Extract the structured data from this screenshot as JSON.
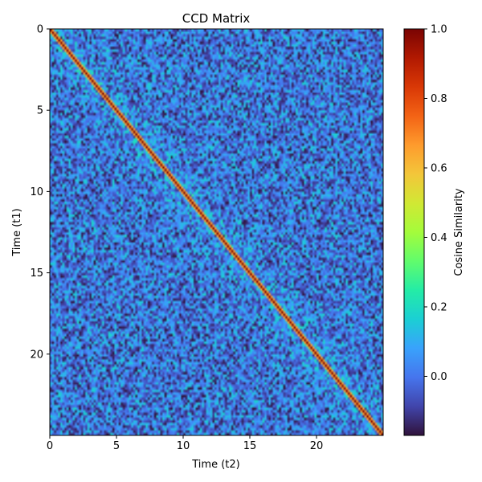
{
  "chart_data": {
    "type": "heatmap",
    "title": "CCD Matrix",
    "xlabel": "Time (t2)",
    "ylabel": "Time (t1)",
    "xlim": [
      0,
      25
    ],
    "ylim": [
      25,
      0
    ],
    "xticks": [
      0,
      5,
      10,
      15,
      20
    ],
    "yticks": [
      0,
      5,
      10,
      15,
      20
    ],
    "colorbar": {
      "label": "Cosine Similarity",
      "range": [
        -0.17,
        1.0
      ],
      "ticks": [
        0.0,
        0.2,
        0.4,
        0.6,
        0.8,
        1.0
      ],
      "tick_labels": [
        "0.0",
        "0.2",
        "0.4",
        "0.6",
        "0.8",
        "1.0"
      ],
      "colormap": "turbo"
    },
    "matrix_description": {
      "diagonal_value": 1.0,
      "near_diagonal_band_value": 0.15,
      "background_mean": 0.0,
      "background_range": [
        -0.12,
        0.2
      ]
    }
  },
  "colors": {
    "colormap_stops": [
      "#30123b",
      "#4145ab",
      "#4675ed",
      "#39a2fc",
      "#1bcfd4",
      "#24eca6",
      "#61fc6c",
      "#a4fc3b",
      "#d1e834",
      "#f3c63a",
      "#fe9b2d",
      "#f36315",
      "#d93806",
      "#b11901",
      "#7a0403"
    ]
  }
}
